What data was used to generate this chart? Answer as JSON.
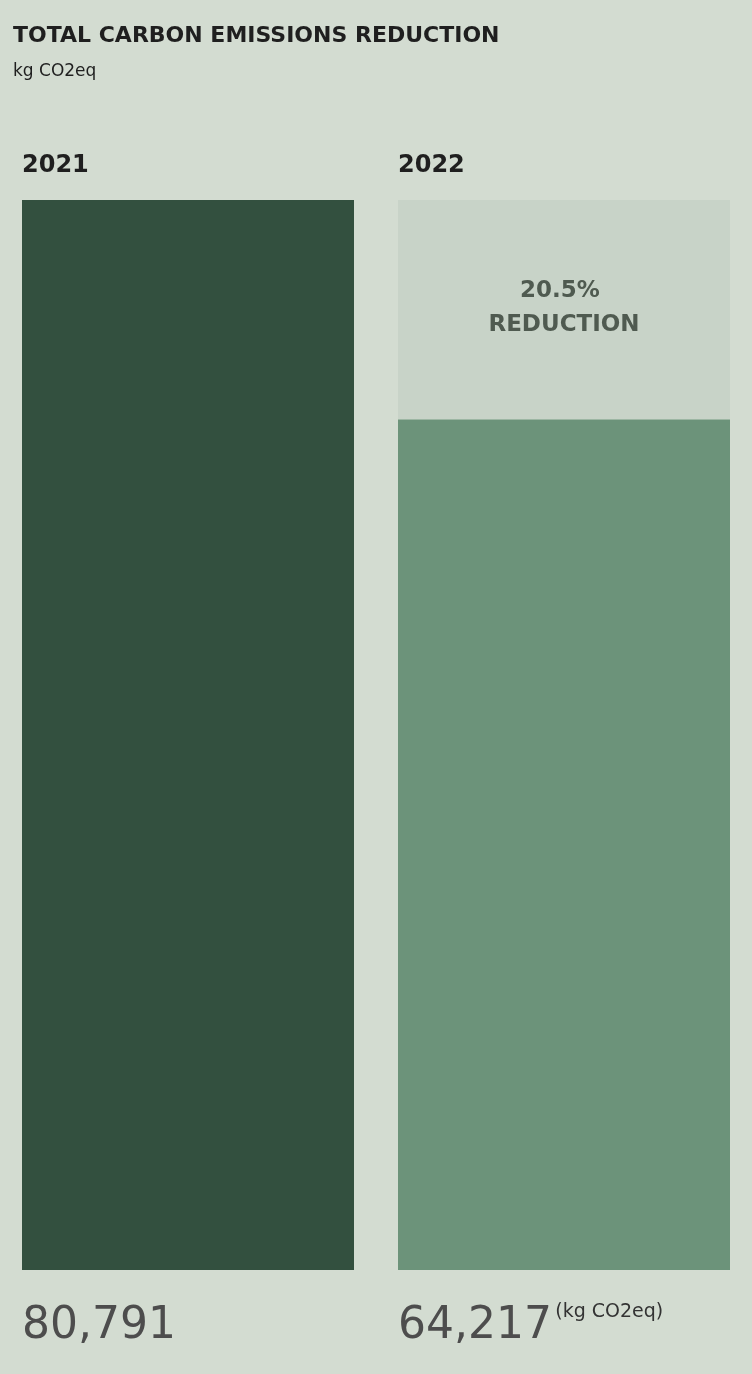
{
  "chart_data": {
    "type": "bar",
    "title": "TOTAL CARBON EMISSIONS REDUCTION",
    "subtitle": "kg CO2eq",
    "categories": [
      "2021",
      "2022"
    ],
    "values": [
      80791,
      64217
    ],
    "colors": [
      "#33503f",
      "#6c937a"
    ],
    "value_labels": [
      "80,791",
      "64,217"
    ],
    "annotations": [
      "(kg CO2eq)"
    ],
    "bands": [
      {
        "axis": "y",
        "from": 64217,
        "to": 80791,
        "label": "20.5% REDUCTION",
        "color": "#c8d3c8"
      }
    ],
    "tick_labels": "x"
  }
}
